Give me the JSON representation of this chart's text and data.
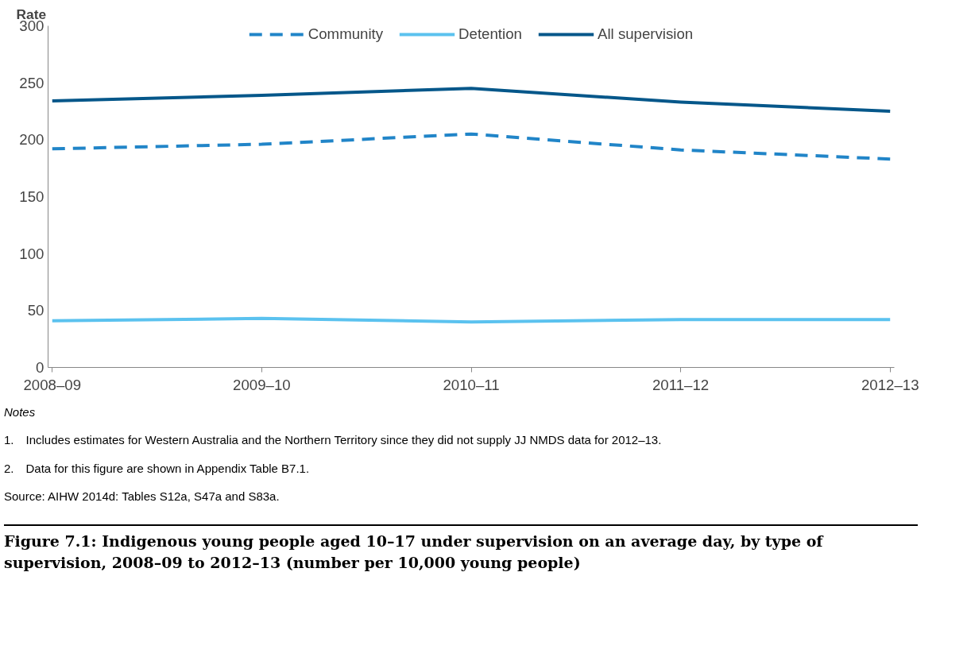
{
  "chart_data": {
    "type": "line",
    "ylabel": "Rate",
    "categories": [
      "2008–09",
      "2009–10",
      "2010–11",
      "2011–12",
      "2012–13"
    ],
    "series": [
      {
        "name": "Community",
        "color": "#2185c8",
        "line_style": "dashed",
        "values": [
          192,
          196,
          205,
          191,
          183
        ]
      },
      {
        "name": "Detention",
        "color": "#5bc2ef",
        "line_style": "solid",
        "values": [
          41,
          43,
          40,
          42,
          42
        ]
      },
      {
        "name": "All supervision",
        "color": "#05578a",
        "line_style": "solid",
        "values": [
          234,
          239,
          245,
          233,
          225
        ]
      }
    ],
    "ylim": [
      0,
      300
    ],
    "yticks": [
      0,
      50,
      100,
      150,
      200,
      250,
      300
    ],
    "grid": false,
    "legend": "top",
    "marker": "none",
    "annotations": [
      "Notes",
      "1. Includes estimates for Western Australia and the Northern Territory since they did not supply JJ NMDS data for 2012–13.",
      "2. Data for this figure are shown in Appendix Table B7.1.",
      "Source: AIHW 2014d: Tables S12a, S47a and S83a."
    ],
    "title": "Figure 7.1: Indigenous young people aged 10–17 under supervision on an average day, by type of supervision, 2008–09 to 2012–13 (number per 10,000 young people)"
  }
}
